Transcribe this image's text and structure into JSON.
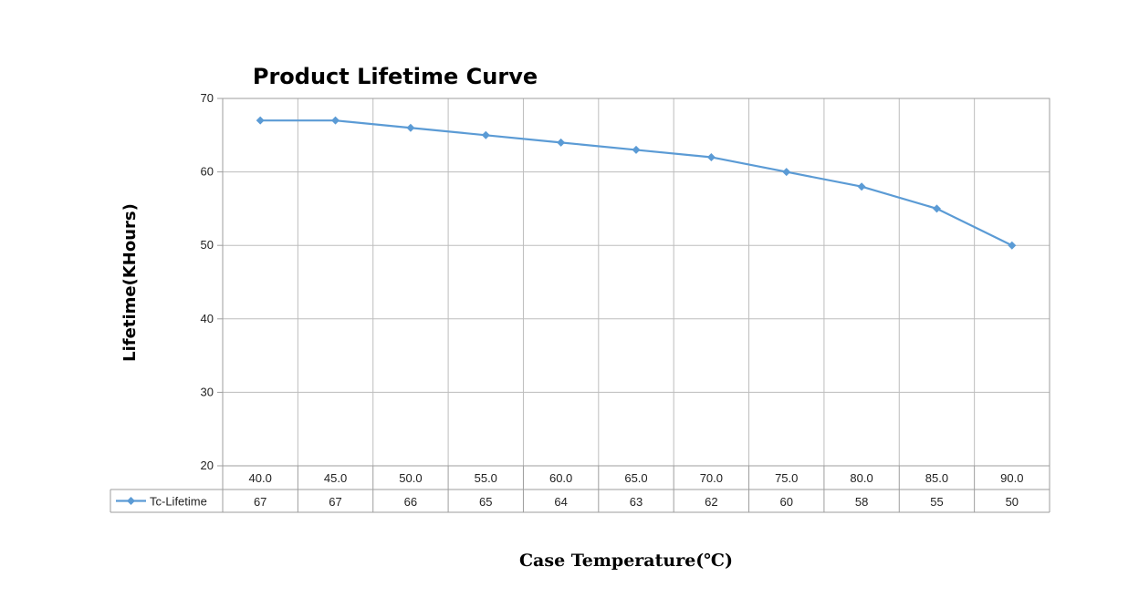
{
  "chart_data": {
    "type": "line",
    "title": "Product Lifetime Curve",
    "xlabel": "Case Temperature(℃)",
    "ylabel": "Lifetime(KHours)",
    "categories": [
      "40.0",
      "45.0",
      "50.0",
      "55.0",
      "60.0",
      "65.0",
      "70.0",
      "75.0",
      "80.0",
      "85.0",
      "90.0"
    ],
    "series": [
      {
        "name": "Tc-Lifetime",
        "values": [
          67,
          67,
          66,
          65,
          64,
          63,
          62,
          60,
          58,
          55,
          50
        ],
        "color": "#5b9bd5"
      }
    ],
    "ylim": [
      20,
      70
    ],
    "yticks": [
      "20",
      "30",
      "40",
      "50",
      "60",
      "70"
    ],
    "grid": true,
    "legend": "data-table-left"
  }
}
